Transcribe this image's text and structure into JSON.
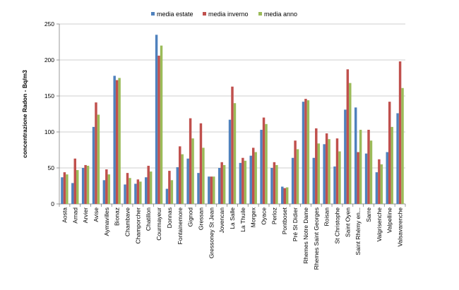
{
  "chart_data": {
    "type": "bar",
    "title": "",
    "xlabel": "",
    "ylabel": "concentrazione Radon - Bq/m3",
    "ylim": [
      0,
      250
    ],
    "yticks": [
      0,
      50,
      100,
      150,
      200,
      250
    ],
    "grid": true,
    "legend_position": "top",
    "categories": [
      "Aosta",
      "Arnad",
      "Arvier",
      "Avise",
      "Aymavilles",
      "Bionaz",
      "Chambave",
      "Champorcher",
      "Chatillon",
      "Courmayeur",
      "Donnas",
      "Fontainemore",
      "Gignod",
      "Gressan",
      "Gressoney St Jean",
      "Jovencan",
      "La Salle",
      "La Thuile",
      "Morgex",
      "Oyace",
      "Perloz",
      "Pontboset",
      "Pré St Didier",
      "Rhemes Notre Dame",
      "Rhemes Saint Georges",
      "Roisan",
      "St Christophe",
      "Saint Oyen",
      "Saint Rhémy en...",
      "Sarre",
      "Valgrisenche",
      "Valpelline",
      "Valsavarenche"
    ],
    "series": [
      {
        "name": "media estate",
        "color": "#4f81bd",
        "values": [
          37,
          29,
          50,
          107,
          33,
          178,
          27,
          28,
          37,
          235,
          21,
          51,
          63,
          43,
          38,
          50,
          117,
          57,
          67,
          103,
          50,
          24,
          64,
          142,
          64,
          83,
          52,
          131,
          134,
          70,
          44,
          72,
          126
        ]
      },
      {
        "name": "media inverno",
        "color": "#c0504d",
        "values": [
          44,
          63,
          54,
          141,
          48,
          172,
          43,
          34,
          53,
          206,
          46,
          80,
          119,
          112,
          38,
          58,
          163,
          64,
          78,
          120,
          58,
          22,
          88,
          146,
          105,
          98,
          91,
          187,
          72,
          103,
          62,
          142,
          198
        ]
      },
      {
        "name": "media anno",
        "color": "#9bbb59",
        "values": [
          41,
          47,
          53,
          124,
          41,
          175,
          36,
          31,
          45,
          220,
          33,
          69,
          91,
          78,
          38,
          54,
          140,
          60,
          72,
          111,
          54,
          23,
          76,
          144,
          84,
          90,
          73,
          168,
          103,
          88,
          55,
          107,
          161
        ]
      }
    ]
  }
}
